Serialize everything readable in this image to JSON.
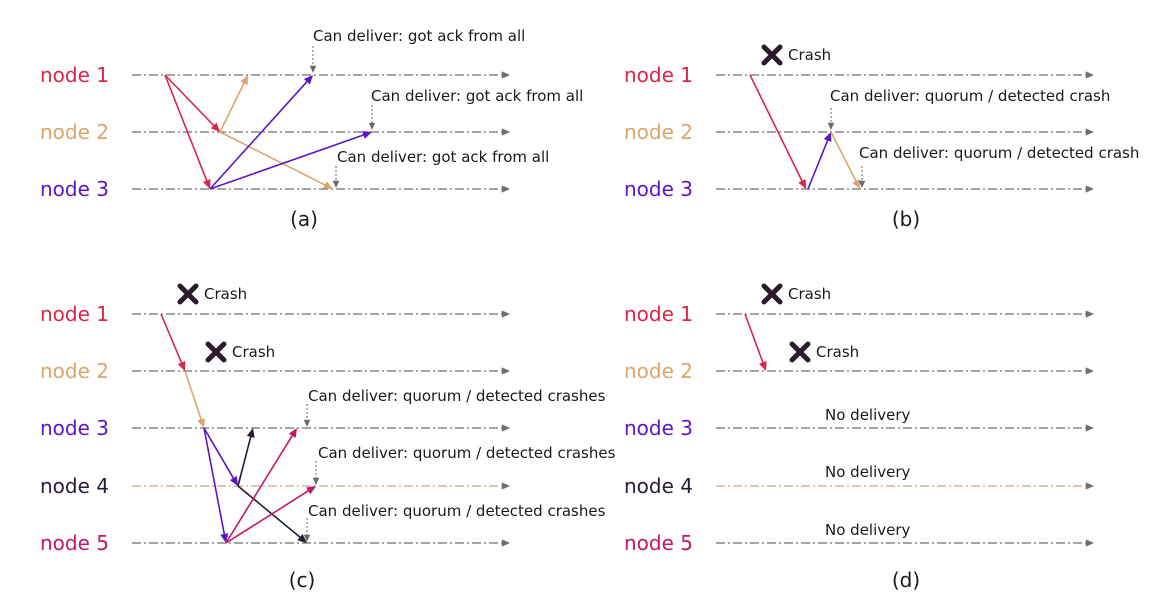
{
  "colors": {
    "node1": "#d8264c",
    "node2": "#d9a66b",
    "node3": "#5c16c6",
    "node4": "#2a1a3a",
    "node5": "#c0186a",
    "timeline": "#6f6f6f",
    "timeline_node4": "#c9a48a",
    "crash": "#2b1a2b"
  },
  "panels": [
    {
      "caption": "(a)",
      "nodes": [
        "node 1",
        "node 2",
        "node 3"
      ],
      "crashes": [],
      "annotations": [
        "Can deliver: got ack from all",
        "Can deliver: got ack from all",
        "Can deliver: got ack from all"
      ]
    },
    {
      "caption": "(b)",
      "nodes": [
        "node 1",
        "node 2",
        "node 3"
      ],
      "crashes": [
        "Crash"
      ],
      "annotations": [
        "Can deliver: quorum / detected crash",
        "Can deliver: quorum / detected crash"
      ]
    },
    {
      "caption": "(c)",
      "nodes": [
        "node 1",
        "node 2",
        "node 3",
        "node 4",
        "node 5"
      ],
      "crashes": [
        "Crash",
        "Crash"
      ],
      "annotations": [
        "Can deliver: quorum / detected crashes",
        "Can deliver: quorum / detected crashes",
        "Can deliver: quorum / detected crashes"
      ]
    },
    {
      "caption": "(d)",
      "nodes": [
        "node 1",
        "node 2",
        "node 3",
        "node 4",
        "node 5"
      ],
      "crashes": [
        "Crash",
        "Crash"
      ],
      "annotations": [
        "No delivery",
        "No delivery",
        "No delivery"
      ]
    }
  ]
}
